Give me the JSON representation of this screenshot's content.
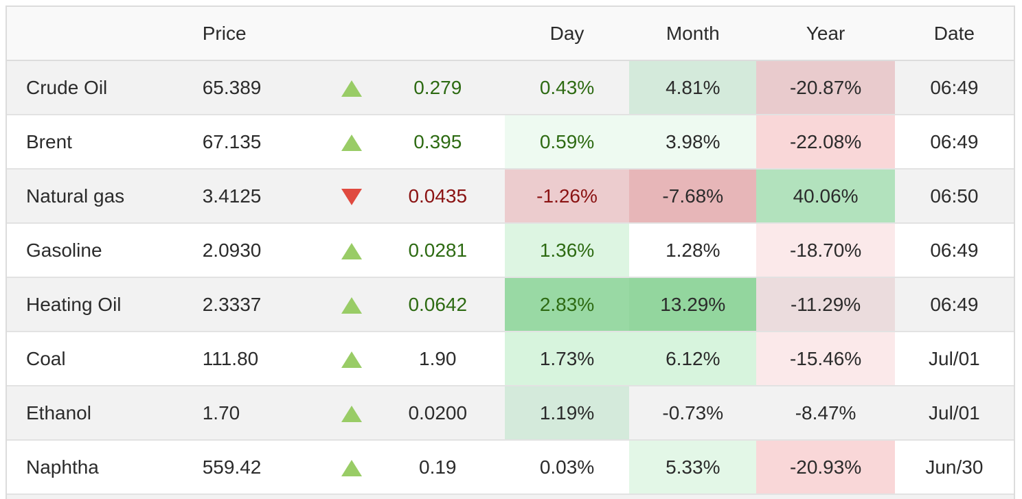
{
  "header": {
    "name": "",
    "price": "Price",
    "arrow": "",
    "change": "",
    "day": "Day",
    "month": "Month",
    "year": "Year",
    "date": "Date"
  },
  "rows": [
    {
      "name": "Crude Oil",
      "price": "65.389",
      "direction": "up",
      "change": "0.279",
      "day": "0.43%",
      "month": "4.81%",
      "year": "-20.87%",
      "date": "06:49",
      "colors": {
        "day": "",
        "month": "#d4eadb",
        "year": "#e9cbcd"
      }
    },
    {
      "name": "Brent",
      "price": "67.135",
      "direction": "up",
      "change": "0.395",
      "day": "0.59%",
      "month": "3.98%",
      "year": "-22.08%",
      "date": "06:49",
      "colors": {
        "day": "#eefaf1",
        "month": "#eefaf1",
        "year": "#f9d7d8"
      }
    },
    {
      "name": "Natural gas",
      "price": "3.4125",
      "direction": "down",
      "change": "0.0435",
      "day": "-1.26%",
      "month": "-7.68%",
      "year": "40.06%",
      "date": "06:50",
      "colors": {
        "day": "#ecccce",
        "month": "#e7b6b8",
        "year": "#b2e2bd"
      }
    },
    {
      "name": "Gasoline",
      "price": "2.0930",
      "direction": "up",
      "change": "0.0281",
      "day": "1.36%",
      "month": "1.28%",
      "year": "-18.70%",
      "date": "06:49",
      "colors": {
        "day": "#ddf5e2",
        "month": "",
        "year": "#fbe9ea"
      }
    },
    {
      "name": "Heating Oil",
      "price": "2.3337",
      "direction": "up",
      "change": "0.0642",
      "day": "2.83%",
      "month": "13.29%",
      "year": "-11.29%",
      "date": "06:49",
      "colors": {
        "day": "#99d9a4",
        "month": "#93d69e",
        "year": "#ebdcdd"
      }
    },
    {
      "name": "Coal",
      "price": "111.80",
      "direction": "up",
      "change": "1.90",
      "day": "1.73%",
      "month": "6.12%",
      "year": "-15.46%",
      "date": "Jul/01",
      "colors": {
        "day": "#d7f4dd",
        "month": "#d7f4dd",
        "year": "#fbe9ea"
      }
    },
    {
      "name": "Ethanol",
      "price": "1.70",
      "direction": "up",
      "change": "0.0200",
      "day": "1.19%",
      "month": "-0.73%",
      "year": "-8.47%",
      "date": "Jul/01",
      "colors": {
        "day": "#d4eadb",
        "month": "",
        "year": ""
      }
    },
    {
      "name": "Naphtha",
      "price": "559.42",
      "direction": "up",
      "change": "0.19",
      "day": "0.03%",
      "month": "5.33%",
      "year": "-20.93%",
      "date": "Jun/30",
      "colors": {
        "day": "",
        "month": "#e3f7e7",
        "year": "#f9d7d8"
      }
    }
  ],
  "change_colors": {
    "up": "#2d6a12",
    "down": "#8a1212"
  },
  "icons": {
    "up": "triangle-up-icon",
    "down": "triangle-down-icon"
  }
}
